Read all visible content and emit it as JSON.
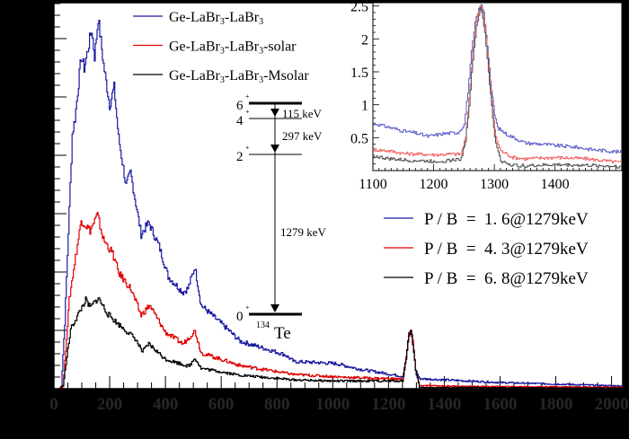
{
  "chart_data": [
    {
      "type": "line",
      "title": "",
      "xlabel": "",
      "ylabel": "",
      "xlim": [
        0,
        2040
      ],
      "ylim": [
        0,
        100
      ],
      "x_ticks": [
        0,
        200,
        400,
        600,
        800,
        1000,
        1200,
        1400,
        1600,
        1800,
        2000
      ],
      "grid": false,
      "legend_placement": "top-center",
      "series": [
        {
          "name": "Ge-LaBr3-LaBr3",
          "color": "#1a1aa0",
          "x": [
            20,
            26,
            38,
            54,
            65,
            75,
            97,
            108,
            134,
            145,
            158,
            177,
            199,
            215,
            231,
            258,
            274,
            312,
            339,
            376,
            409,
            462,
            480,
            505,
            527,
            613,
            667,
            774,
            828,
            860,
            940,
            1011,
            1100,
            1226,
            1250,
            1262,
            1272,
            1279,
            1286,
            1296,
            1310,
            1400,
            1600,
            1800,
            2040
          ],
          "y": [
            0,
            0.7,
            17,
            46.5,
            66,
            70,
            86,
            83,
            93,
            86,
            96,
            84,
            73.5,
            78,
            65,
            52.5,
            56,
            40,
            43,
            37,
            29,
            25,
            26,
            31.6,
            21.6,
            16,
            12.3,
            10,
            8.8,
            7,
            6.8,
            6.5,
            5,
            3.5,
            3.2,
            8,
            14,
            15,
            12,
            5,
            2.6,
            2.3,
            1.6,
            1.2,
            0.7
          ]
        },
        {
          "name": "Ge-LaBr3-LaBr3-solar",
          "color": "#e00000",
          "x": [
            20,
            32,
            54,
            70,
            97,
            129,
            155,
            177,
            210,
            231,
            274,
            312,
            342,
            398,
            462,
            505,
            527,
            667,
            860,
            1032,
            1250,
            1262,
            1272,
            1279,
            1286,
            1296,
            1310,
            1500,
            1800,
            2040
          ],
          "y": [
            0,
            0.5,
            23,
            31,
            43.7,
            41,
            45,
            38.6,
            35,
            30,
            26,
            19,
            21.6,
            14.7,
            11.6,
            15,
            9.3,
            6,
            3.7,
            3,
            2.5,
            8,
            14,
            15,
            12,
            5,
            0.8,
            0.6,
            0.5,
            0.4
          ]
        },
        {
          "name": "Ge-LaBr3-LaBr3-Msolar",
          "color": "#000000",
          "x": [
            20,
            32,
            59,
            113,
            129,
            158,
            193,
            226,
            290,
            317,
            339,
            398,
            484,
            505,
            527,
            667,
            860,
            1000,
            1250,
            1262,
            1272,
            1279,
            1286,
            1296,
            1310,
            1500,
            1800,
            2040
          ],
          "y": [
            0,
            1,
            15.4,
            23,
            21,
            23.5,
            19.3,
            17,
            13,
            9.5,
            11.6,
            7.7,
            5.8,
            8,
            5.3,
            3.5,
            2.3,
            2,
            2,
            8,
            14,
            15,
            12,
            5,
            0.3,
            0.3,
            0.2,
            0.2
          ]
        }
      ],
      "annotations": {
        "level_scheme": {
          "levels": [
            "6+",
            "4+",
            "2+",
            "0+"
          ],
          "transitions": [
            "115 keV",
            "297 keV",
            "1279 keV"
          ],
          "nucleus_mass": "134",
          "nucleus_symbol": "Te"
        },
        "pb_legend": [
          {
            "label": "P / B  =  1. 6@1279keV",
            "color": "#1a1aa0"
          },
          {
            "label": "P / B  =  4. 3@1279keV",
            "color": "#e00000"
          },
          {
            "label": "P / B  =  6. 8@1279keV",
            "color": "#000000"
          }
        ]
      }
    },
    {
      "type": "line",
      "title": "",
      "xlim": [
        1100,
        1510
      ],
      "ylim": [
        0,
        2.55
      ],
      "x_ticks": [
        1100,
        1200,
        1300,
        1400
      ],
      "y_ticks": [
        0.5,
        1,
        1.5,
        2,
        2.5
      ],
      "grid": false,
      "placement": "inset-top-right",
      "series": [
        {
          "color": "#5a5ac8",
          "x": [
            1100,
            1125,
            1150,
            1170,
            1190,
            1215,
            1240,
            1250,
            1256,
            1262,
            1268,
            1274,
            1278,
            1282,
            1288,
            1295,
            1300,
            1305,
            1320,
            1350,
            1380,
            1400,
            1430,
            1460,
            1510
          ],
          "y": [
            0.72,
            0.66,
            0.6,
            0.57,
            0.52,
            0.56,
            0.58,
            0.7,
            1.2,
            1.8,
            2.25,
            2.45,
            2.5,
            2.4,
            1.9,
            1.2,
            0.85,
            0.65,
            0.55,
            0.42,
            0.4,
            0.38,
            0.36,
            0.32,
            0.28
          ]
        },
        {
          "color": "#f06060",
          "x": [
            1100,
            1125,
            1150,
            1175,
            1200,
            1225,
            1245,
            1252,
            1258,
            1264,
            1270,
            1276,
            1279,
            1284,
            1290,
            1297,
            1302,
            1310,
            1330,
            1350,
            1400,
            1450,
            1510
          ],
          "y": [
            0.32,
            0.3,
            0.26,
            0.25,
            0.24,
            0.25,
            0.25,
            0.5,
            1.1,
            1.8,
            2.3,
            2.5,
            2.48,
            2.2,
            1.6,
            0.9,
            0.5,
            0.3,
            0.2,
            0.18,
            0.2,
            0.18,
            0.12
          ]
        },
        {
          "color": "#505050",
          "x": [
            1100,
            1125,
            1150,
            1175,
            1200,
            1225,
            1245,
            1252,
            1258,
            1264,
            1270,
            1276,
            1279,
            1284,
            1290,
            1297,
            1302,
            1310,
            1330,
            1350,
            1400,
            1450,
            1510
          ],
          "y": [
            0.22,
            0.18,
            0.16,
            0.15,
            0.14,
            0.15,
            0.18,
            0.45,
            1.0,
            1.7,
            2.2,
            2.45,
            2.4,
            2.1,
            1.5,
            0.8,
            0.4,
            0.15,
            0.08,
            0.07,
            0.09,
            0.08,
            0.06
          ]
        }
      ]
    }
  ],
  "legend": [
    {
      "label": "Ge-LaBr",
      "sub": "3",
      "label2": "-LaBr",
      "sub2": "3",
      "suffix": "",
      "color": "#1a1aa0"
    },
    {
      "label": "Ge-LaBr",
      "sub": "3",
      "label2": "-LaBr",
      "sub2": "3",
      "suffix": "-solar",
      "color": "#e00000"
    },
    {
      "label": "Ge-LaBr",
      "sub": "3",
      "label2": "-LaBr",
      "sub2": "3",
      "suffix": "-Msolar",
      "color": "#000000"
    }
  ]
}
